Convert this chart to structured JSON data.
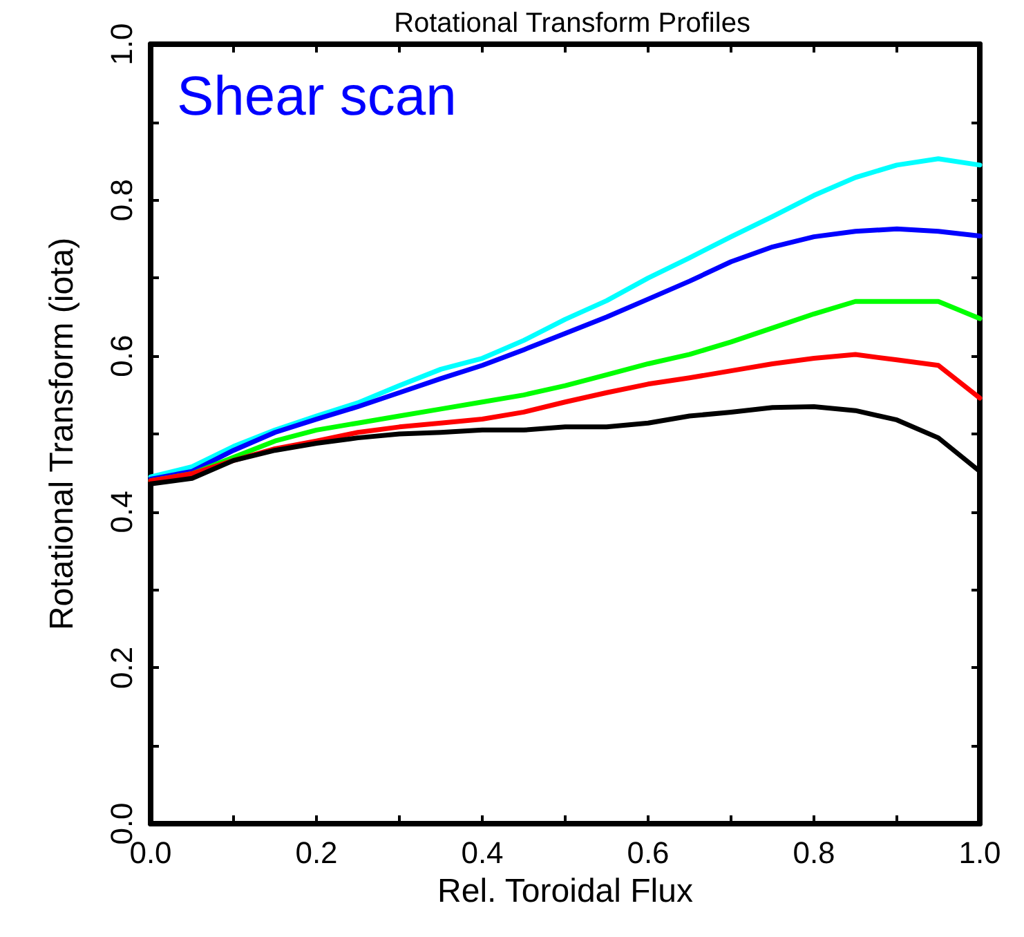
{
  "chart_data": {
    "type": "line",
    "title": "Rotational Transform Profiles",
    "xlabel": "Rel. Toroidal Flux",
    "ylabel": "Rotational Transform (iota)",
    "annotations": [
      "Shear scan"
    ],
    "x": [
      0,
      0.05,
      0.1,
      0.15,
      0.2,
      0.25,
      0.3,
      0.35,
      0.4,
      0.45,
      0.5,
      0.55,
      0.6,
      0.65,
      0.7,
      0.75,
      0.8,
      0.85,
      0.9,
      0.95,
      1.0
    ],
    "series": [
      {
        "color": "#00ffff",
        "values": [
          0.445,
          0.458,
          0.484,
          0.505,
          0.523,
          0.54,
          0.562,
          0.583,
          0.597,
          0.62,
          0.647,
          0.671,
          0.7,
          0.726,
          0.753,
          0.779,
          0.806,
          0.829,
          0.845,
          0.853,
          0.845
        ]
      },
      {
        "color": "#0000ff",
        "values": [
          0.442,
          0.452,
          0.479,
          0.502,
          0.519,
          0.535,
          0.553,
          0.571,
          0.588,
          0.608,
          0.629,
          0.65,
          0.673,
          0.696,
          0.721,
          0.74,
          0.753,
          0.76,
          0.763,
          0.76,
          0.754
        ]
      },
      {
        "color": "#00ff00",
        "values": [
          0.44,
          0.449,
          0.47,
          0.491,
          0.505,
          0.514,
          0.523,
          0.532,
          0.541,
          0.55,
          0.562,
          0.576,
          0.59,
          0.602,
          0.618,
          0.636,
          0.654,
          0.67,
          0.67,
          0.67,
          0.648
        ]
      },
      {
        "color": "#ff0000",
        "values": [
          0.44,
          0.449,
          0.466,
          0.481,
          0.491,
          0.502,
          0.509,
          0.514,
          0.519,
          0.528,
          0.541,
          0.553,
          0.564,
          0.572,
          0.581,
          0.59,
          0.597,
          0.602,
          0.595,
          0.588,
          0.546
        ]
      },
      {
        "color": "#000000",
        "values": [
          0.436,
          0.443,
          0.466,
          0.479,
          0.488,
          0.495,
          0.5,
          0.502,
          0.505,
          0.505,
          0.509,
          0.509,
          0.514,
          0.523,
          0.528,
          0.534,
          0.535,
          0.53,
          0.518,
          0.495,
          0.452
        ]
      }
    ],
    "xlim": [
      0,
      1
    ],
    "xticks": [
      {
        "value": 0,
        "label": "0.0"
      },
      {
        "value": 0.1,
        "label": null
      },
      {
        "value": 0.2,
        "label": "0.2"
      },
      {
        "value": 0.3,
        "label": null
      },
      {
        "value": 0.4,
        "label": "0.4"
      },
      {
        "value": 0.5,
        "label": null
      },
      {
        "value": 0.6,
        "label": "0.6"
      },
      {
        "value": 0.7,
        "label": null
      },
      {
        "value": 0.8,
        "label": "0.8"
      },
      {
        "value": 0.9,
        "label": null
      },
      {
        "value": 1,
        "label": "1.0"
      }
    ],
    "ylim": [
      0,
      1
    ],
    "yticks": [
      {
        "value": 0,
        "label": "0.0"
      },
      {
        "value": 0.1,
        "label": null
      },
      {
        "value": 0.2,
        "label": "0.2"
      },
      {
        "value": 0.3,
        "label": null
      },
      {
        "value": 0.4,
        "label": "0.4"
      },
      {
        "value": 0.5,
        "label": null
      },
      {
        "value": 0.6,
        "label": "0.6"
      },
      {
        "value": 0.7,
        "label": null
      },
      {
        "value": 0.8,
        "label": "0.8"
      },
      {
        "value": 0.9,
        "label": null
      },
      {
        "value": 1,
        "label": "1.0"
      }
    ],
    "grid": false,
    "marker": "none",
    "line_style": "solid"
  }
}
